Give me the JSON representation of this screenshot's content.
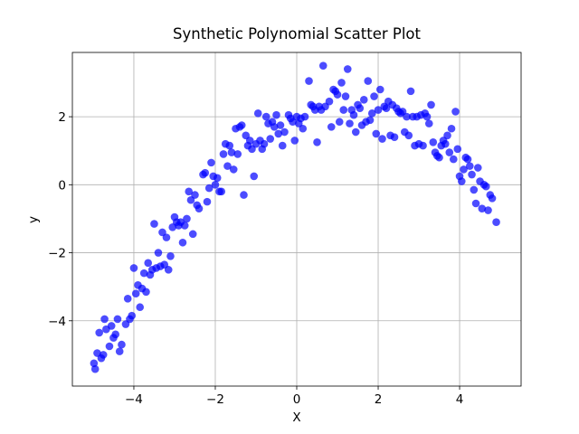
{
  "chart_data": {
    "type": "scatter",
    "title": "Synthetic Polynomial Scatter Plot",
    "xlabel": "X",
    "ylabel": "y",
    "color": "#0000ff",
    "grid": true,
    "xlim": [
      -5.51,
      5.51
    ],
    "ylim": [
      -5.92,
      3.89
    ],
    "xticks": [
      {
        "value": -4,
        "label": "−4"
      },
      {
        "value": -2,
        "label": "−2"
      },
      0,
      2,
      4
    ],
    "yticks": [
      {
        "value": -4,
        "label": "−4"
      },
      {
        "value": -2,
        "label": "−2"
      },
      0,
      2
    ],
    "x": [
      -4.98,
      -4.95,
      -4.9,
      -4.85,
      -4.8,
      -4.75,
      -4.72,
      -4.68,
      -4.6,
      -4.55,
      -4.5,
      -4.45,
      -4.4,
      -4.35,
      -4.3,
      -4.2,
      -4.15,
      -4.1,
      -4.05,
      -4.0,
      -3.95,
      -3.9,
      -3.85,
      -3.8,
      -3.75,
      -3.7,
      -3.65,
      -3.6,
      -3.55,
      -3.5,
      -3.45,
      -3.4,
      -3.35,
      -3.3,
      -3.25,
      -3.2,
      -3.15,
      -3.1,
      -3.05,
      -3.0,
      -2.95,
      -2.9,
      -2.85,
      -2.8,
      -2.75,
      -2.7,
      -2.65,
      -2.6,
      -2.55,
      -2.5,
      -2.45,
      -2.4,
      -2.3,
      -2.25,
      -2.2,
      -2.15,
      -2.1,
      -2.05,
      -2.0,
      -1.95,
      -1.9,
      -1.85,
      -1.8,
      -1.75,
      -1.7,
      -1.65,
      -1.6,
      -1.55,
      -1.5,
      -1.45,
      -1.4,
      -1.35,
      -1.3,
      -1.25,
      -1.2,
      -1.15,
      -1.1,
      -1.05,
      -1.0,
      -0.95,
      -0.9,
      -0.85,
      -0.8,
      -0.75,
      -0.7,
      -0.65,
      -0.6,
      -0.55,
      -0.5,
      -0.45,
      -0.4,
      -0.35,
      -0.3,
      -0.2,
      -0.15,
      -0.1,
      -0.05,
      0.0,
      0.05,
      0.1,
      0.15,
      0.2,
      0.3,
      0.35,
      0.4,
      0.45,
      0.5,
      0.55,
      0.6,
      0.65,
      0.7,
      0.8,
      0.85,
      0.9,
      0.95,
      1.0,
      1.05,
      1.1,
      1.15,
      1.2,
      1.25,
      1.3,
      1.35,
      1.4,
      1.45,
      1.5,
      1.55,
      1.6,
      1.65,
      1.7,
      1.75,
      1.8,
      1.85,
      1.9,
      1.95,
      2.0,
      2.05,
      2.1,
      2.15,
      2.2,
      2.25,
      2.3,
      2.35,
      2.4,
      2.45,
      2.5,
      2.55,
      2.6,
      2.65,
      2.7,
      2.75,
      2.8,
      2.85,
      2.9,
      2.95,
      3.0,
      3.05,
      3.1,
      3.15,
      3.2,
      3.25,
      3.3,
      3.35,
      3.4,
      3.45,
      3.5,
      3.55,
      3.6,
      3.65,
      3.7,
      3.75,
      3.8,
      3.85,
      3.9,
      3.95,
      4.0,
      4.05,
      4.1,
      4.15,
      4.2,
      4.25,
      4.3,
      4.35,
      4.4,
      4.45,
      4.5,
      4.55,
      4.6,
      4.65,
      4.7,
      4.75,
      4.8,
      4.9
    ],
    "values": [
      -5.25,
      -5.42,
      -4.95,
      -4.35,
      -5.1,
      -5.0,
      -3.95,
      -4.25,
      -4.75,
      -4.15,
      -4.5,
      -4.4,
      -3.95,
      -4.9,
      -4.7,
      -4.1,
      -3.35,
      -3.95,
      -3.85,
      -2.45,
      -3.2,
      -2.95,
      -3.6,
      -3.05,
      -2.6,
      -3.15,
      -2.3,
      -2.65,
      -2.5,
      -1.15,
      -2.45,
      -2.0,
      -2.4,
      -1.4,
      -2.35,
      -1.55,
      -2.5,
      -2.1,
      -1.25,
      -0.95,
      -1.1,
      -1.2,
      -1.1,
      -1.7,
      -1.2,
      -1.0,
      -0.2,
      -0.45,
      -1.45,
      -0.3,
      -0.6,
      -0.7,
      0.3,
      0.35,
      -0.5,
      -0.1,
      0.65,
      0.25,
      0.0,
      0.2,
      -0.2,
      -0.2,
      0.9,
      1.2,
      0.55,
      1.15,
      0.95,
      0.45,
      1.65,
      0.9,
      1.7,
      1.75,
      -0.3,
      1.45,
      1.15,
      1.3,
      1.05,
      0.25,
      1.2,
      2.1,
      1.3,
      1.05,
      1.2,
      2.0,
      1.8,
      1.35,
      1.85,
      1.7,
      2.05,
      1.5,
      1.75,
      1.15,
      1.55,
      2.05,
      1.95,
      1.85,
      1.3,
      2.0,
      1.8,
      1.95,
      1.65,
      2.0,
      3.05,
      2.35,
      2.3,
      2.2,
      1.25,
      2.3,
      2.2,
      3.5,
      2.3,
      2.45,
      1.7,
      2.8,
      2.75,
      2.65,
      1.85,
      3.0,
      2.2,
      2.6,
      3.4,
      1.8,
      2.2,
      2.05,
      1.55,
      2.35,
      2.25,
      1.75,
      2.5,
      1.85,
      3.05,
      1.9,
      2.1,
      2.6,
      1.5,
      2.2,
      2.8,
      1.35,
      2.3,
      2.25,
      2.45,
      1.45,
      2.35,
      1.4,
      2.25,
      2.15,
      2.1,
      2.15,
      1.55,
      2.0,
      1.45,
      2.75,
      2.0,
      1.15,
      2.0,
      1.2,
      2.05,
      1.15,
      2.1,
      2.0,
      1.8,
      2.35,
      1.25,
      0.95,
      0.85,
      0.8,
      1.15,
      1.3,
      1.2,
      1.45,
      0.95,
      1.65,
      0.75,
      2.15,
      1.05,
      0.25,
      0.1,
      0.45,
      0.8,
      0.75,
      0.55,
      0.3,
      -0.15,
      -0.55,
      0.5,
      0.1,
      -0.7,
      0.0,
      -0.05,
      -0.75,
      -0.3,
      -0.4,
      -1.1
    ]
  }
}
